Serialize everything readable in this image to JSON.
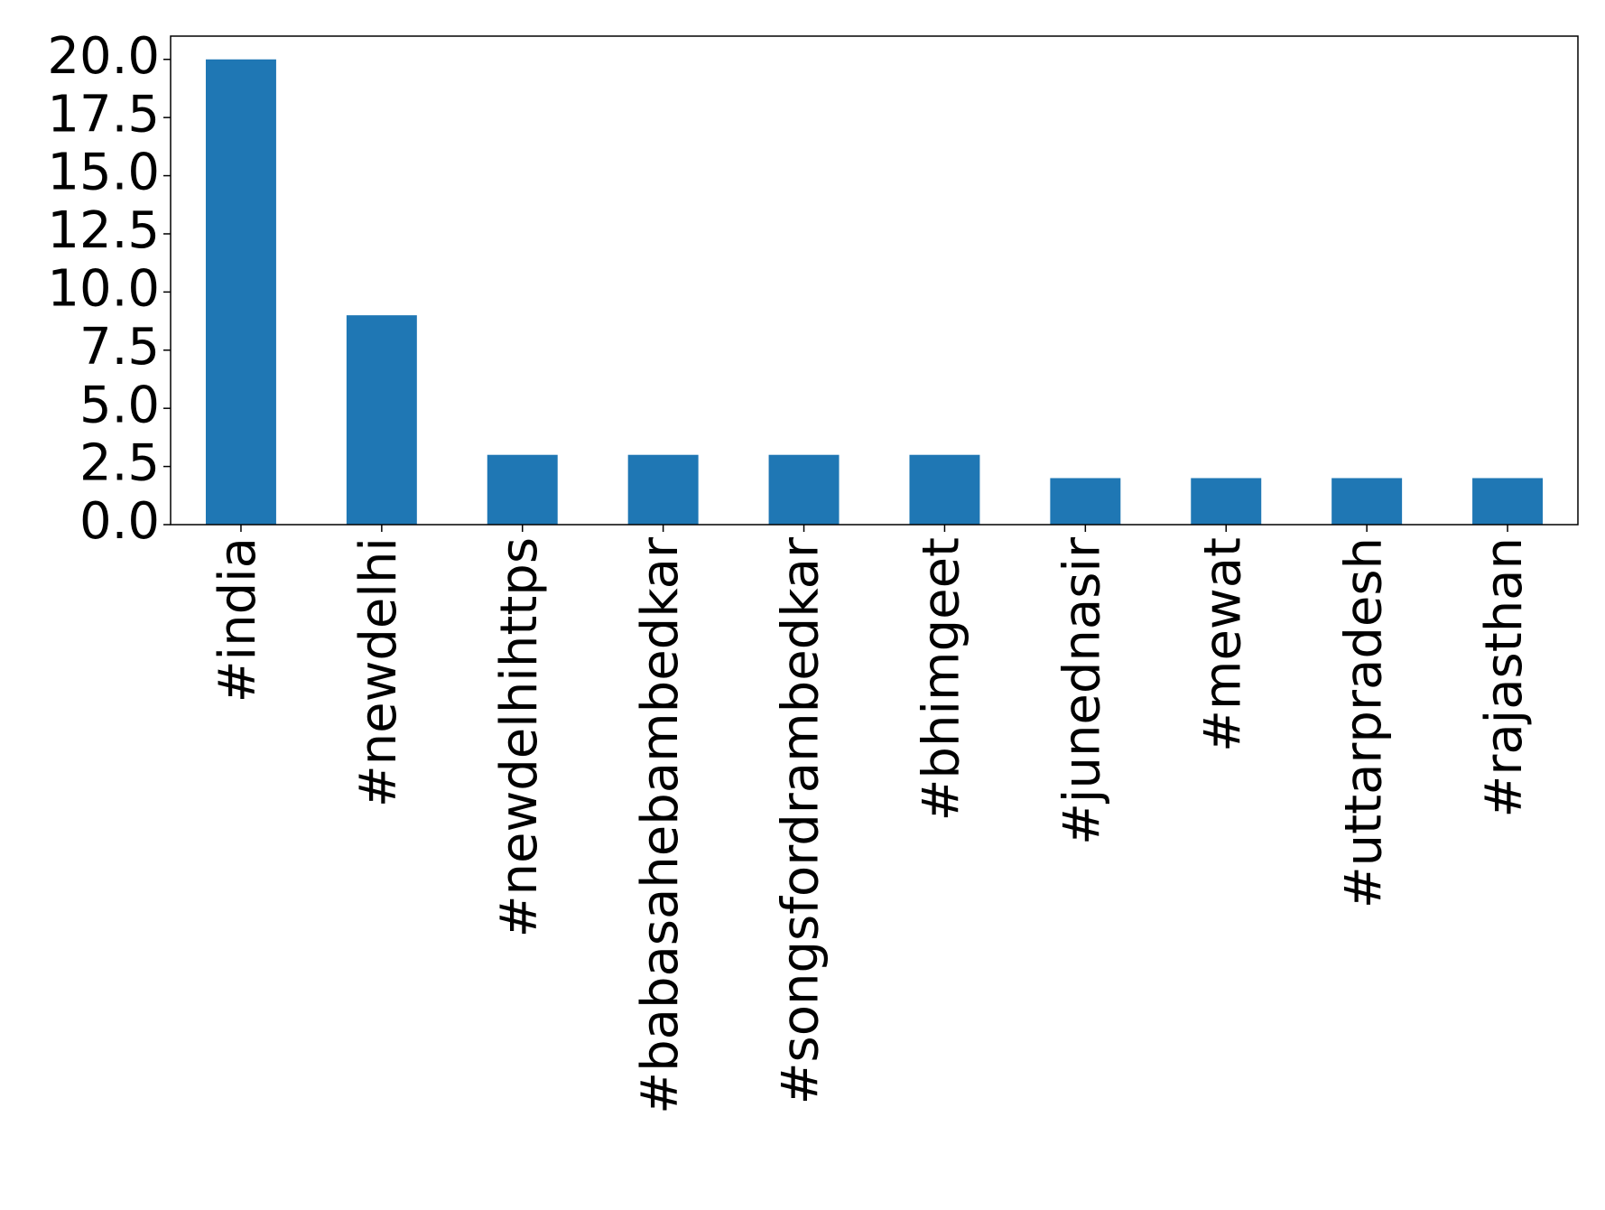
{
  "chart_data": {
    "type": "bar",
    "categories": [
      "#india",
      "#newdelhi",
      "#newdelhihttps",
      "#babasahebambedkar",
      "#songsfordrambedkar",
      "#bhimgeet",
      "#junednasir",
      "#mewat",
      "#uttarpradesh",
      "#rajasthan"
    ],
    "values": [
      20,
      9,
      3,
      3,
      3,
      3,
      2,
      2,
      2,
      2
    ],
    "color": "#1f77b4",
    "ylim": [
      0,
      21
    ],
    "yticks": [
      {
        "value": 0,
        "label": "0.0"
      },
      {
        "value": 2.5,
        "label": "2.5"
      },
      {
        "value": 5,
        "label": "5.0"
      },
      {
        "value": 7.5,
        "label": "7.5"
      },
      {
        "value": 10,
        "label": "10.0"
      },
      {
        "value": 12.5,
        "label": "12.5"
      },
      {
        "value": 15,
        "label": "15.0"
      },
      {
        "value": 17.5,
        "label": "17.5"
      },
      {
        "value": 20,
        "label": "20.0"
      }
    ]
  }
}
